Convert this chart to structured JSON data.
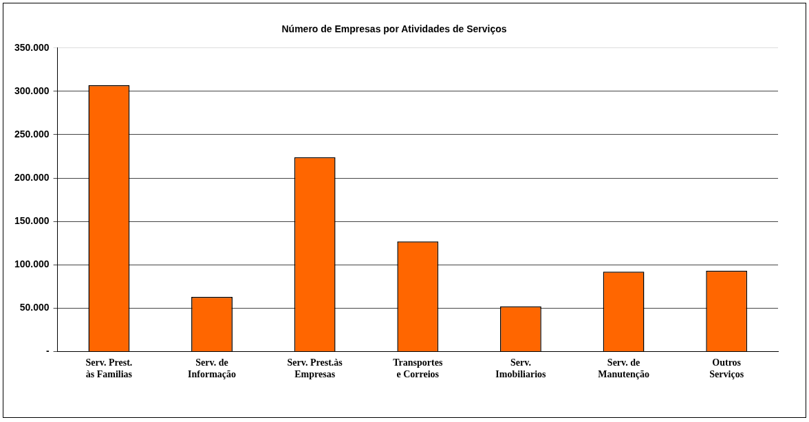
{
  "chart_data": {
    "type": "bar",
    "title": "Número de Empresas por Atividades de Serviços",
    "categories": [
      "Serv. Prest. às Familias",
      "Serv. de Informação",
      "Serv. Prest.às Empresas",
      "Transportes e Correios",
      "Serv. Imobiliarios",
      "Serv. de Manutenção",
      "Outros Serviços"
    ],
    "values": [
      307000,
      63000,
      224000,
      127000,
      52000,
      92000,
      93000
    ],
    "color": "#ff6600",
    "ylim": [
      0,
      350000
    ],
    "yticks": [
      {
        "value": 0,
        "label": "-"
      },
      {
        "value": 50000,
        "label": "50.000"
      },
      {
        "value": 100000,
        "label": "100.000"
      },
      {
        "value": 150000,
        "label": "150.000"
      },
      {
        "value": 200000,
        "label": "200.000"
      },
      {
        "value": 250000,
        "label": "250.000"
      },
      {
        "value": 300000,
        "label": "300.000"
      },
      {
        "value": 350000,
        "label": "350.000"
      }
    ],
    "grid": "y",
    "legend": false
  }
}
